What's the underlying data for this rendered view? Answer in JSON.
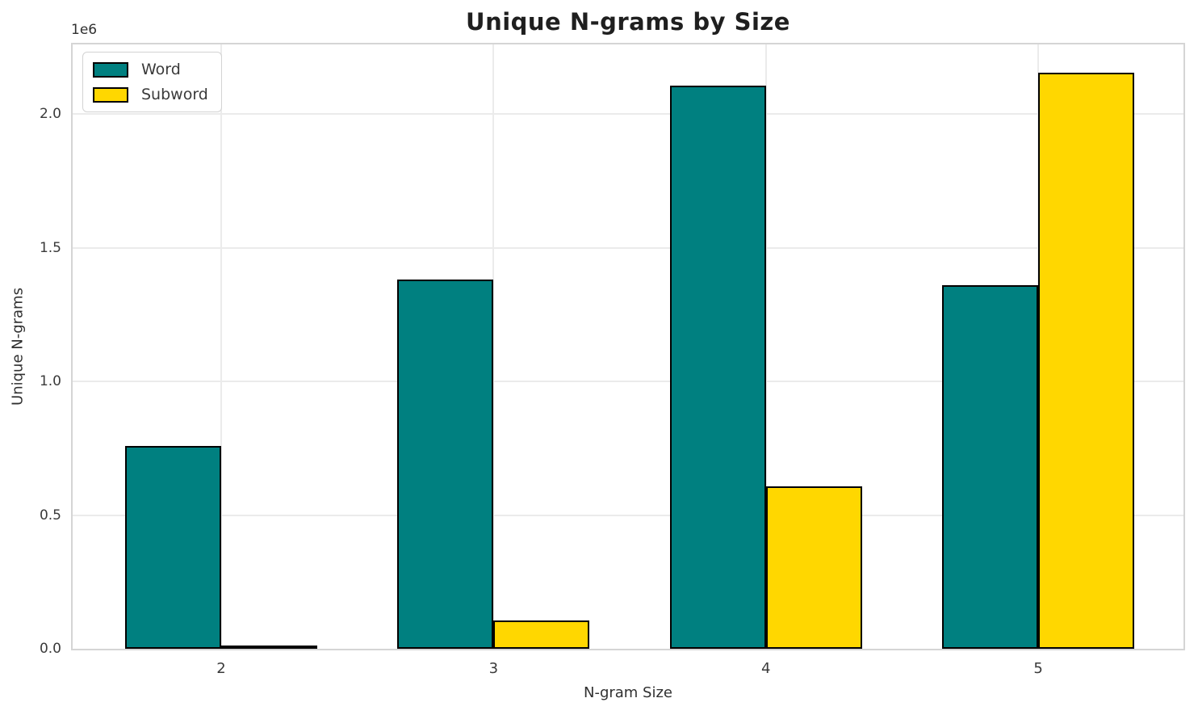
{
  "chart_data": {
    "type": "bar",
    "title": "Unique N-grams by Size",
    "xlabel": "N-gram Size",
    "ylabel": "Unique N-grams",
    "y_offset_text": "1e6",
    "categories": [
      "2",
      "3",
      "4",
      "5"
    ],
    "series": [
      {
        "name": "Word",
        "color": "#008080",
        "values": [
          758000,
          1381000,
          2105000,
          1360000
        ]
      },
      {
        "name": "Subword",
        "color": "#FFD700",
        "values": [
          12000,
          105000,
          607000,
          2153000
        ]
      }
    ],
    "bar_edge_color": "#000000",
    "ylim": [
      0,
      2260000
    ],
    "yticks": [
      0.0,
      0.5,
      1.0,
      1.5,
      2.0
    ],
    "ytick_labels": [
      "0.0",
      "0.5",
      "1.0",
      "1.5",
      "2.0"
    ],
    "grid": true,
    "legend_position": "upper left"
  }
}
